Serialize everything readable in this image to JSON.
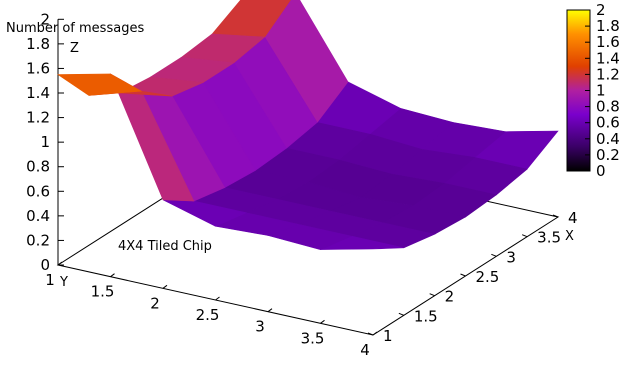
{
  "chart_data": {
    "type": "surface",
    "title": "",
    "zlabel": "Number of messages",
    "zaxis_letter": "Z",
    "xlabel": "X",
    "ylabel": "Y",
    "annotation": "4X4 Tiled Chip",
    "xlim": [
      1,
      4
    ],
    "ylim": [
      1,
      4
    ],
    "zlim": [
      0,
      2
    ],
    "xticks": [
      "1",
      "1.5",
      "2",
      "2.5",
      "3",
      "3.5",
      "4"
    ],
    "yticks": [
      "1",
      "1.5",
      "2",
      "2.5",
      "3",
      "3.5",
      "4"
    ],
    "zticks": [
      "0",
      "0.2",
      "0.4",
      "0.6",
      "0.8",
      "1",
      "1.2",
      "1.4",
      "1.6",
      "1.8",
      "2"
    ],
    "colorbar": {
      "range": [
        0,
        2
      ],
      "ticks": [
        "0",
        "0.2",
        "0.4",
        "0.6",
        "0.8",
        "1",
        "1.2",
        "1.4",
        "1.6",
        "1.8",
        "2"
      ],
      "colormap": [
        "#000000",
        "#3a0066",
        "#7a00cc",
        "#b020a0",
        "#e04000",
        "#ff9000",
        "#ffff00"
      ]
    },
    "description_grid": {
      "x": [
        1,
        1.5,
        2,
        2.5,
        3,
        3.5,
        4
      ],
      "y": [
        1,
        1.5,
        2,
        2.5,
        3,
        3.5,
        4
      ],
      "z": [
        [
          1.55,
          1.22,
          1.08,
          1.05,
          1.05,
          1.08,
          1.22
        ],
        [
          1.65,
          1.35,
          1.15,
          1.1,
          1.1,
          1.15,
          1.35
        ],
        [
          0.72,
          0.55,
          0.5,
          0.48,
          0.5,
          0.55,
          0.72
        ],
        [
          0.6,
          0.55,
          0.5,
          0.48,
          0.5,
          0.55,
          0.6
        ],
        [
          0.62,
          0.55,
          0.5,
          0.45,
          0.48,
          0.52,
          0.58
        ],
        [
          0.6,
          0.55,
          0.5,
          0.48,
          0.5,
          0.55,
          0.6
        ],
        [
          0.7,
          0.55,
          0.5,
          0.48,
          0.5,
          0.55,
          0.7
        ]
      ]
    }
  }
}
